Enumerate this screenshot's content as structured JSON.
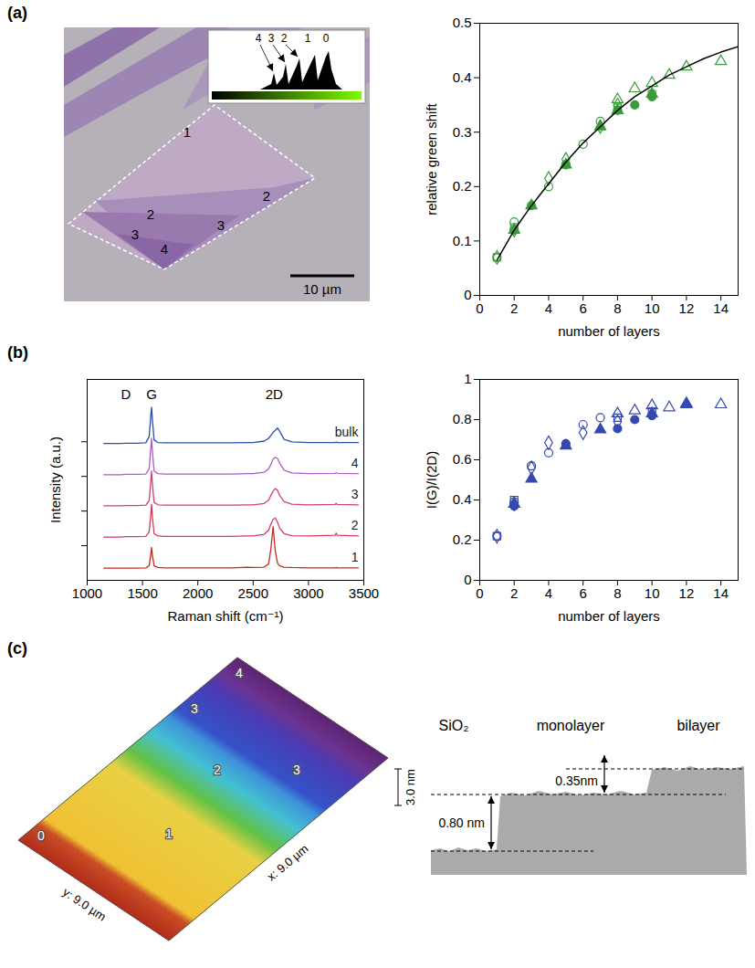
{
  "chart_data": [
    {
      "type": "scatter",
      "x_label": "number of layers",
      "y_label": "relative green shift",
      "xlim": [
        0,
        15
      ],
      "ylim": [
        0,
        0.5
      ],
      "xticks": [
        0,
        2,
        4,
        6,
        8,
        10,
        12,
        14
      ],
      "yticks": [
        0,
        0.1,
        0.2,
        0.3,
        0.4,
        0.5
      ],
      "color": "#3b9a3b",
      "series": [
        {
          "marker": "circle",
          "x": [
            1,
            2,
            3,
            4,
            5,
            6,
            7
          ],
          "values": [
            0.07,
            0.135,
            0.165,
            0.2,
            0.24,
            0.278,
            0.32
          ]
        },
        {
          "marker": "filled_circle",
          "x": [
            2,
            5,
            8,
            9,
            10
          ],
          "values": [
            0.12,
            0.24,
            0.34,
            0.35,
            0.365
          ]
        },
        {
          "marker": "diamond",
          "x": [
            1,
            2,
            4,
            5,
            7,
            8
          ],
          "values": [
            0.07,
            0.12,
            0.215,
            0.25,
            0.31,
            0.35
          ]
        },
        {
          "marker": "triangle",
          "x": [
            8,
            9,
            10,
            11,
            12,
            14
          ],
          "values": [
            0.36,
            0.38,
            0.39,
            0.405,
            0.42,
            0.43
          ]
        },
        {
          "marker": "filled_triangle",
          "x": [
            2,
            3,
            5,
            7,
            8,
            10
          ],
          "values": [
            0.12,
            0.165,
            0.24,
            0.31,
            0.34,
            0.37
          ]
        },
        {
          "marker": "square",
          "x": [
            1,
            2,
            8,
            10
          ],
          "values": [
            0.07,
            0.125,
            0.345,
            0.37
          ]
        },
        {
          "type": "line",
          "color": "#000000",
          "x": [
            1,
            2,
            3,
            4,
            5,
            6,
            7,
            8,
            9,
            10,
            11,
            12,
            13,
            14,
            15
          ],
          "values": [
            0.065,
            0.12,
            0.165,
            0.205,
            0.245,
            0.28,
            0.31,
            0.34,
            0.365,
            0.385,
            0.405,
            0.42,
            0.435,
            0.447,
            0.457
          ]
        }
      ]
    },
    {
      "panel": "(b)",
      "type": "line",
      "x_label": "Raman shift (cm⁻¹)",
      "y_label": "Intensity (a.u.)",
      "xlim": [
        1000,
        3500
      ],
      "ylim": [
        0,
        5.8
      ],
      "xticks": [
        1000,
        1500,
        2000,
        2500,
        3000,
        3500
      ],
      "yticks": [
        1,
        2,
        3,
        4
      ],
      "tick_labels": "x",
      "annotations": [
        {
          "text": "D",
          "x": 1350
        },
        {
          "text": "G",
          "x": 1582
        },
        {
          "text": "2D",
          "x": 2690
        }
      ],
      "x": [
        1150,
        1300,
        1350,
        1450,
        1530,
        1560,
        1575,
        1582,
        1590,
        1605,
        1640,
        1700,
        2000,
        2300,
        2450,
        2500,
        2600,
        2640,
        2660,
        2680,
        2700,
        2720,
        2740,
        2780,
        2850,
        3000,
        3240,
        3250,
        3260,
        3450
      ],
      "series": [
        {
          "name": "bulk",
          "color": "#2b4ea8",
          "values": [
            3.95,
            3.95,
            3.96,
            3.96,
            3.97,
            4.15,
            4.75,
            5.0,
            4.6,
            4.05,
            3.98,
            3.97,
            3.97,
            3.97,
            3.98,
            3.98,
            4.02,
            4.1,
            4.18,
            4.27,
            4.33,
            4.4,
            4.3,
            4.07,
            4.0,
            3.98,
            3.98,
            3.99,
            3.98,
            3.98
          ]
        },
        {
          "name": "4",
          "color": "#b05ac8",
          "values": [
            3.05,
            3.05,
            3.06,
            3.06,
            3.07,
            3.22,
            3.8,
            4.1,
            3.7,
            3.15,
            3.08,
            3.07,
            3.07,
            3.07,
            3.08,
            3.08,
            3.12,
            3.22,
            3.35,
            3.5,
            3.55,
            3.52,
            3.38,
            3.18,
            3.1,
            3.08,
            3.09,
            3.11,
            3.09,
            3.08
          ]
        },
        {
          "name": "3",
          "color": "#d0407a",
          "values": [
            2.15,
            2.15,
            2.16,
            2.16,
            2.17,
            2.3,
            2.85,
            3.15,
            2.75,
            2.25,
            2.18,
            2.17,
            2.17,
            2.17,
            2.18,
            2.18,
            2.22,
            2.32,
            2.45,
            2.58,
            2.65,
            2.6,
            2.45,
            2.27,
            2.2,
            2.18,
            2.19,
            2.22,
            2.19,
            2.18
          ]
        },
        {
          "name": "2",
          "color": "#d83a5a",
          "values": [
            1.25,
            1.25,
            1.26,
            1.26,
            1.27,
            1.4,
            1.9,
            2.2,
            1.8,
            1.35,
            1.28,
            1.27,
            1.27,
            1.27,
            1.28,
            1.28,
            1.33,
            1.45,
            1.62,
            1.76,
            1.8,
            1.68,
            1.5,
            1.35,
            1.29,
            1.28,
            1.3,
            1.36,
            1.3,
            1.28
          ]
        },
        {
          "name": "1",
          "color": "#c8281e",
          "values": [
            0.35,
            0.35,
            0.35,
            0.35,
            0.36,
            0.42,
            0.75,
            0.95,
            0.7,
            0.42,
            0.37,
            0.36,
            0.36,
            0.36,
            0.38,
            0.37,
            0.38,
            0.48,
            0.9,
            1.55,
            0.85,
            0.5,
            0.42,
            0.38,
            0.37,
            0.36,
            0.36,
            0.37,
            0.36,
            0.36
          ]
        }
      ]
    },
    {
      "type": "scatter",
      "x_label": "number of layers",
      "y_label": "I(G)/I(2D)",
      "xlim": [
        0,
        15
      ],
      "ylim": [
        0,
        1
      ],
      "xticks": [
        0,
        2,
        4,
        6,
        8,
        10,
        12,
        14
      ],
      "yticks": [
        0,
        0.2,
        0.4,
        0.6,
        0.8,
        1
      ],
      "color": "#3548b0",
      "series": [
        {
          "marker": "circle",
          "x": [
            1,
            2,
            3,
            4,
            6,
            7
          ],
          "values": [
            0.22,
            0.39,
            0.57,
            0.635,
            0.775,
            0.81
          ]
        },
        {
          "marker": "filled_circle",
          "x": [
            2,
            5,
            8,
            9,
            10
          ],
          "values": [
            0.37,
            0.68,
            0.755,
            0.8,
            0.82
          ]
        },
        {
          "marker": "diamond",
          "x": [
            1,
            2,
            3,
            4,
            6,
            8
          ],
          "values": [
            0.22,
            0.38,
            0.56,
            0.685,
            0.735,
            0.79
          ]
        },
        {
          "marker": "triangle",
          "x": [
            8,
            9,
            10,
            11,
            12,
            14
          ],
          "values": [
            0.83,
            0.845,
            0.87,
            0.86,
            0.88,
            0.875
          ]
        },
        {
          "marker": "filled_triangle",
          "x": [
            2,
            3,
            5,
            7,
            10,
            12
          ],
          "values": [
            0.38,
            0.505,
            0.67,
            0.75,
            0.83,
            0.875
          ]
        },
        {
          "marker": "square",
          "x": [
            1,
            2,
            8,
            10
          ],
          "values": [
            0.22,
            0.4,
            0.81,
            0.84
          ]
        }
      ]
    }
  ],
  "image": {
    "panel": "(a)",
    "region_labels": [
      "1",
      "2",
      "2",
      "3",
      "3",
      "4"
    ],
    "scale_bar": "10 µm",
    "inset": {
      "peak_labels": [
        "4",
        "3",
        "2",
        "1",
        "0"
      ]
    }
  },
  "afm": {
    "panel": "(c)",
    "region_labels": [
      "0",
      "1",
      "2",
      "3",
      "4",
      "3"
    ],
    "x_axis": "x: 9.0 µm",
    "y_axis": "y: 9.0 µm",
    "z_scale": "3.0 nm"
  },
  "profile": {
    "regions": [
      "SiO₂",
      "monolayer",
      "bilayer"
    ],
    "steps": [
      "0.80 nm",
      "0.35nm"
    ]
  }
}
